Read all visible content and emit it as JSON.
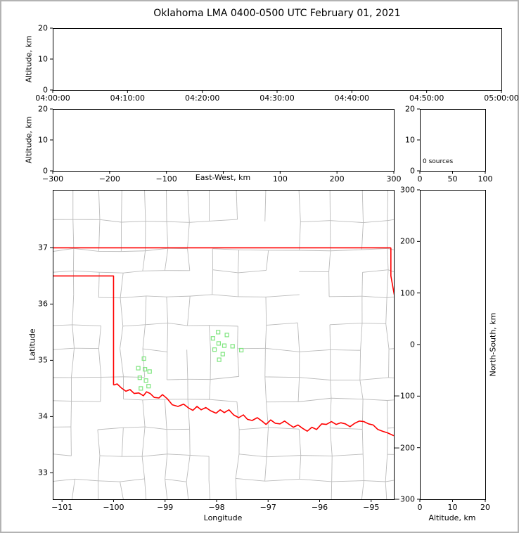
{
  "colors": {
    "state_border": "#ff0000",
    "county_lines": "#bbbbbb",
    "station_marker": "#7fe57f",
    "axis": "#000000",
    "background": "#ffffff",
    "figure_border": "#b3b3b3"
  },
  "chart_data": {
    "type": "scatter",
    "title": "Oklahoma LMA 0400-0500 UTC February 01, 2021",
    "panels": {
      "time_height": {
        "ylabel": "Altitude, km",
        "ylim": [
          0,
          20
        ],
        "ytick_values": [
          0,
          10,
          20
        ],
        "ytick_labels": [
          "0",
          "10",
          "20"
        ],
        "xtick_labels": [
          "04:00:00",
          "04:10:00",
          "04:20:00",
          "04:30:00",
          "04:40:00",
          "04:50:00",
          "05:00:00"
        ],
        "points": []
      },
      "ew_height": {
        "ylabel": "Altitude, km",
        "xlabel": "East-West, km",
        "ylim": [
          0,
          20
        ],
        "xlim": [
          -300,
          300
        ],
        "ytick_values": [
          0,
          10,
          20
        ],
        "ytick_labels": [
          "0",
          "10",
          "20"
        ],
        "xtick_values": [
          -300,
          -200,
          -100,
          0,
          100,
          200,
          300
        ],
        "xtick_labels": [
          "−300",
          "−200",
          "−100",
          "",
          "100",
          "200",
          "300"
        ],
        "points": []
      },
      "source_histogram": {
        "annotation": "0 sources",
        "xlim": [
          0,
          100
        ],
        "ylim": [
          0,
          20
        ],
        "xtick_values": [
          0,
          50,
          100
        ],
        "xtick_labels": [
          "0",
          "50",
          "100"
        ],
        "ytick_values": [
          0,
          10,
          20
        ],
        "ytick_labels": [
          "0",
          "10",
          "20"
        ],
        "bars": []
      },
      "map": {
        "xlabel": "Longitude",
        "ylabel": "Latitude",
        "xlim": [
          -101.18,
          -94.56
        ],
        "ylim": [
          32.53,
          38.03
        ],
        "xtick_values": [
          -101,
          -100,
          -99,
          -98,
          -97,
          -96,
          -95
        ],
        "xtick_labels": [
          "−101",
          "−100",
          "−99",
          "−98",
          "−97",
          "−96",
          "−95"
        ],
        "ytick_values": [
          33,
          34,
          35,
          36,
          37
        ],
        "ytick_labels": [
          "33",
          "34",
          "35",
          "36",
          "37"
        ],
        "stations": [
          [
            -97.97,
            35.5
          ],
          [
            -97.8,
            35.45
          ],
          [
            -98.07,
            35.39
          ],
          [
            -97.96,
            35.3
          ],
          [
            -97.85,
            35.26
          ],
          [
            -97.69,
            35.25
          ],
          [
            -98.04,
            35.19
          ],
          [
            -97.88,
            35.11
          ],
          [
            -97.95,
            35.01
          ],
          [
            -97.52,
            35.18
          ],
          [
            -99.41,
            35.03
          ],
          [
            -99.52,
            34.86
          ],
          [
            -99.39,
            34.84
          ],
          [
            -99.3,
            34.8
          ],
          [
            -99.49,
            34.69
          ],
          [
            -99.37,
            34.64
          ],
          [
            -99.47,
            34.5
          ],
          [
            -99.32,
            34.54
          ]
        ],
        "state_border": [
          [
            [
              -101.18,
              37.0
            ],
            [
              -94.617,
              37.0
            ]
          ],
          [
            [
              -94.617,
              37.0
            ],
            [
              -94.617,
              36.5
            ],
            [
              -94.45,
              35.65
            ]
          ],
          [
            [
              -101.18,
              36.5
            ],
            [
              -100.0,
              36.5
            ],
            [
              -100.0,
              34.56
            ]
          ]
        ],
        "red_river": [
          [
            -100.0,
            34.56
          ],
          [
            -99.93,
            34.58
          ],
          [
            -99.85,
            34.51
          ],
          [
            -99.76,
            34.45
          ],
          [
            -99.68,
            34.48
          ],
          [
            -99.6,
            34.41
          ],
          [
            -99.51,
            34.42
          ],
          [
            -99.42,
            34.37
          ],
          [
            -99.36,
            34.44
          ],
          [
            -99.29,
            34.41
          ],
          [
            -99.21,
            34.34
          ],
          [
            -99.12,
            34.33
          ],
          [
            -99.05,
            34.39
          ],
          [
            -98.96,
            34.32
          ],
          [
            -98.86,
            34.21
          ],
          [
            -98.75,
            34.18
          ],
          [
            -98.64,
            34.22
          ],
          [
            -98.54,
            34.15
          ],
          [
            -98.46,
            34.11
          ],
          [
            -98.38,
            34.18
          ],
          [
            -98.3,
            34.12
          ],
          [
            -98.21,
            34.16
          ],
          [
            -98.11,
            34.1
          ],
          [
            -98.01,
            34.06
          ],
          [
            -97.93,
            34.12
          ],
          [
            -97.85,
            34.07
          ],
          [
            -97.76,
            34.12
          ],
          [
            -97.67,
            34.03
          ],
          [
            -97.57,
            33.98
          ],
          [
            -97.48,
            34.03
          ],
          [
            -97.4,
            33.95
          ],
          [
            -97.31,
            33.93
          ],
          [
            -97.21,
            33.98
          ],
          [
            -97.12,
            33.92
          ],
          [
            -97.04,
            33.86
          ],
          [
            -96.95,
            33.94
          ],
          [
            -96.86,
            33.88
          ],
          [
            -96.77,
            33.87
          ],
          [
            -96.68,
            33.92
          ],
          [
            -96.59,
            33.86
          ],
          [
            -96.51,
            33.81
          ],
          [
            -96.42,
            33.85
          ],
          [
            -96.33,
            33.79
          ],
          [
            -96.24,
            33.74
          ],
          [
            -96.15,
            33.81
          ],
          [
            -96.06,
            33.77
          ],
          [
            -95.96,
            33.87
          ],
          [
            -95.87,
            33.86
          ],
          [
            -95.77,
            33.91
          ],
          [
            -95.68,
            33.86
          ],
          [
            -95.59,
            33.89
          ],
          [
            -95.5,
            33.87
          ],
          [
            -95.41,
            33.82
          ],
          [
            -95.32,
            33.88
          ],
          [
            -95.23,
            33.92
          ],
          [
            -95.14,
            33.91
          ],
          [
            -95.05,
            33.87
          ],
          [
            -94.96,
            33.85
          ],
          [
            -94.87,
            33.77
          ],
          [
            -94.78,
            33.74
          ],
          [
            -94.68,
            33.71
          ],
          [
            -94.56,
            33.66
          ]
        ]
      },
      "ns_height": {
        "xlabel": "Altitude, km",
        "ylabel_right": "North-South, km",
        "xlim": [
          0,
          20
        ],
        "ylim": [
          -300,
          300
        ],
        "xtick_values": [
          0,
          10,
          20
        ],
        "xtick_labels": [
          "0",
          "10",
          "20"
        ],
        "ytick_values": [
          300,
          200,
          100,
          0,
          -100,
          -200,
          -300
        ],
        "ytick_labels": [
          "300",
          "200",
          "100",
          "0",
          "−100",
          "−200",
          "−300"
        ],
        "points": []
      }
    }
  }
}
